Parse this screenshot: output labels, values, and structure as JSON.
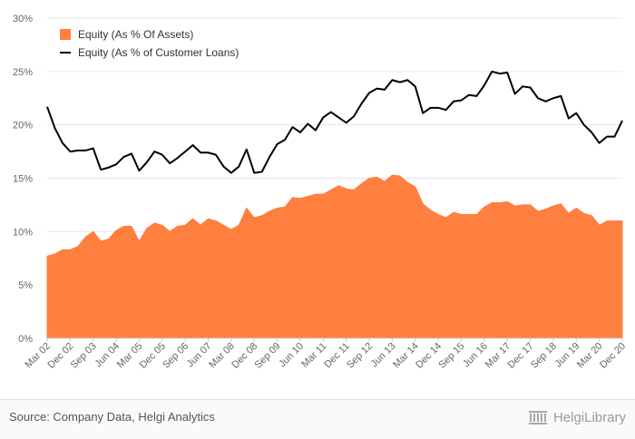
{
  "chart_data": {
    "type": "area",
    "x_tick_labels": [
      "Mar 02",
      "Dec 02",
      "Sep 03",
      "Jun 04",
      "Mar 05",
      "Dec 05",
      "Sep 06",
      "Jun 07",
      "Mar 08",
      "Dec 08",
      "Sep 09",
      "Jun 10",
      "Mar 11",
      "Dec 11",
      "Sep 12",
      "Jun 13",
      "Mar 14",
      "Dec 14",
      "Sep 15",
      "Jun 16",
      "Mar 17",
      "Dec 17",
      "Sep 18",
      "Jun 19",
      "Mar 20",
      "Dec 20"
    ],
    "y_tick_labels": [
      "0%",
      "5%",
      "10%",
      "15%",
      "20%",
      "25%",
      "30%"
    ],
    "ylim": [
      0,
      30
    ],
    "grid": true,
    "legend_position": "top-left",
    "series": [
      {
        "name": "Equity (As % Of Assets)",
        "kind": "area",
        "color": "#ff7f3f",
        "values": [
          7.7,
          7.9,
          8.3,
          8.3,
          8.6,
          9.5,
          10.0,
          9.1,
          9.3,
          10.1,
          10.5,
          10.5,
          9.1,
          10.3,
          10.8,
          10.6,
          10.0,
          10.5,
          10.6,
          11.2,
          10.6,
          11.2,
          11.0,
          10.6,
          10.2,
          10.6,
          12.2,
          11.3,
          11.5,
          11.9,
          12.2,
          12.3,
          13.2,
          13.1,
          13.3,
          13.5,
          13.5,
          13.9,
          14.3,
          14.0,
          13.9,
          14.5,
          15.0,
          15.1,
          14.7,
          15.3,
          15.2,
          14.6,
          14.2,
          12.6,
          12.0,
          11.6,
          11.3,
          11.8,
          11.6,
          11.6,
          11.6,
          12.3,
          12.7,
          12.7,
          12.8,
          12.4,
          12.5,
          12.5,
          11.9,
          12.1,
          12.4,
          12.6,
          11.7,
          12.2,
          11.7,
          11.5,
          10.6,
          11.0,
          11.0,
          11.0
        ],
        "x_note": "quarterly, Mar 02 to Dec 20"
      },
      {
        "name": "Equity (As % of Customer Loans)",
        "kind": "line",
        "color": "#000000",
        "values": [
          21.7,
          19.7,
          18.3,
          17.5,
          17.6,
          17.6,
          17.8,
          15.8,
          16.0,
          16.3,
          17.0,
          17.3,
          15.7,
          16.5,
          17.5,
          17.2,
          16.4,
          16.9,
          17.5,
          18.1,
          17.4,
          17.4,
          17.2,
          16.1,
          15.5,
          16.1,
          17.7,
          15.5,
          15.6,
          17.0,
          18.2,
          18.6,
          19.8,
          19.3,
          20.1,
          19.5,
          20.7,
          21.2,
          20.7,
          20.2,
          20.8,
          22.0,
          23.0,
          23.4,
          23.3,
          24.2,
          24.0,
          24.2,
          23.6,
          21.1,
          21.6,
          21.6,
          21.4,
          22.2,
          22.3,
          22.8,
          22.7,
          23.7,
          25.0,
          24.8,
          24.9,
          22.9,
          23.6,
          23.5,
          22.5,
          22.2,
          22.5,
          22.7,
          20.6,
          21.1,
          20.0,
          19.3,
          18.3,
          18.9,
          18.9,
          20.4
        ]
      }
    ]
  },
  "legend": {
    "area_label": "Equity (As % Of Assets)",
    "line_label": "Equity (As % of Customer Loans)"
  },
  "footer": {
    "source": "Source: Company Data, Helgi Analytics",
    "brand": "HelgiLibrary"
  }
}
